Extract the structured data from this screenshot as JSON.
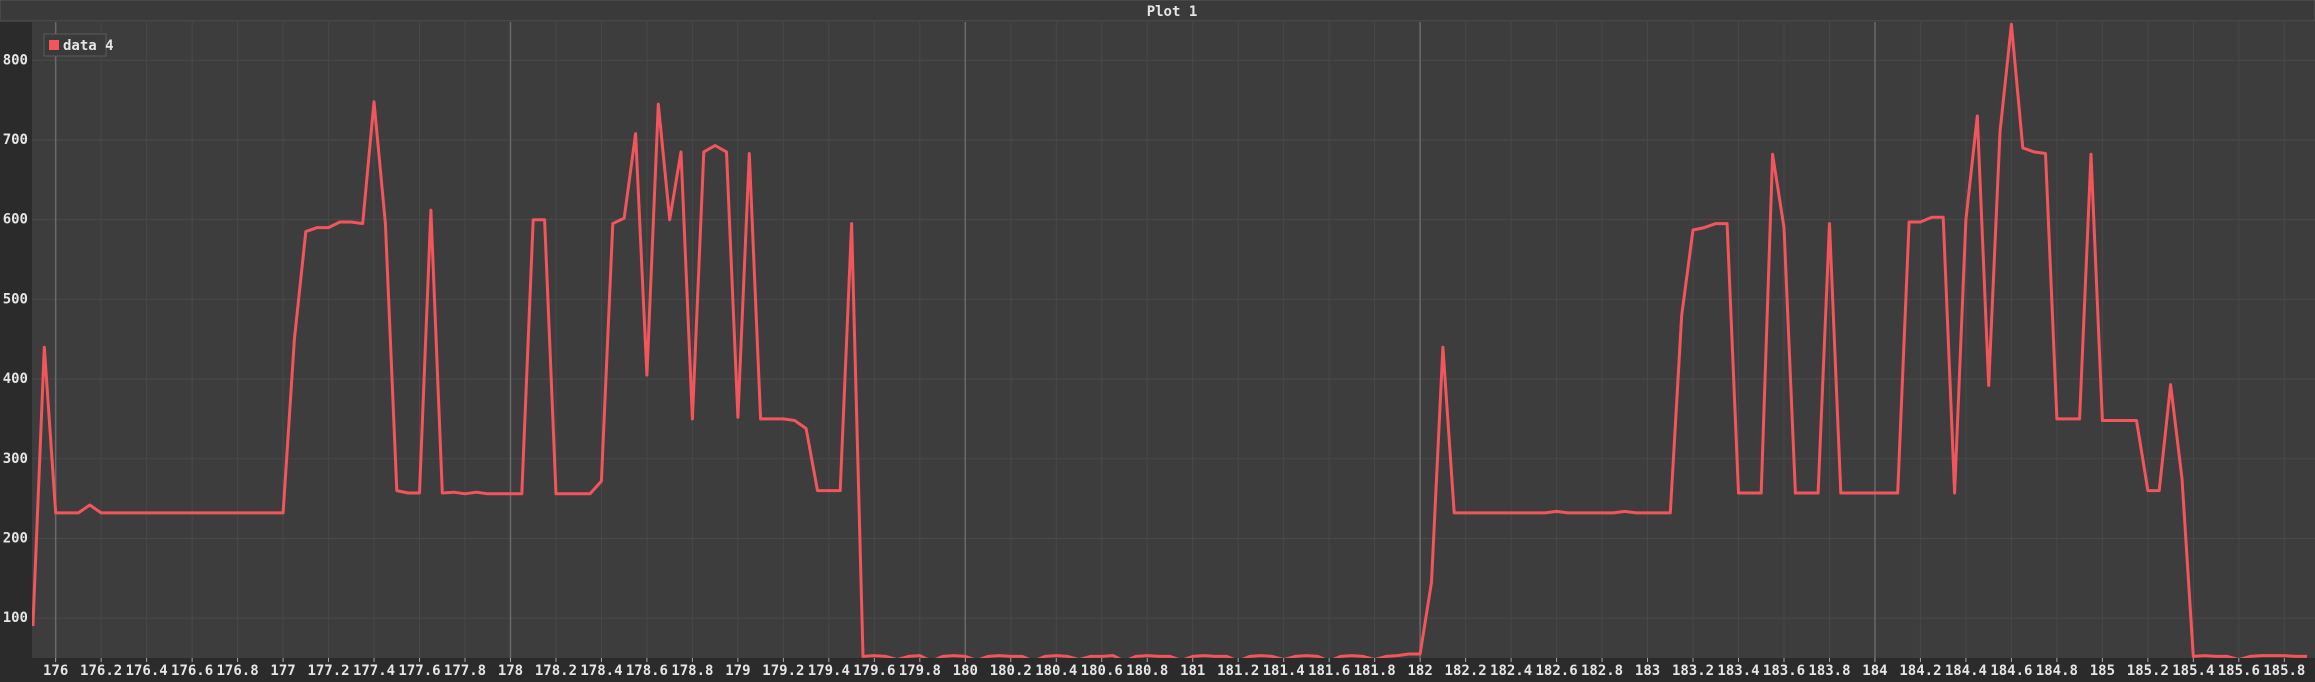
{
  "chart_data": {
    "type": "line",
    "title": "Plot 1",
    "x": [
      175.9,
      175.95,
      176,
      176.05,
      176.1,
      176.15,
      176.2,
      176.25,
      176.3,
      176.35,
      176.4,
      176.45,
      176.5,
      176.55,
      176.6,
      176.65,
      176.7,
      176.75,
      176.8,
      176.85,
      176.9,
      176.95,
      177,
      177.05,
      177.1,
      177.15,
      177.2,
      177.25,
      177.3,
      177.35,
      177.4,
      177.45,
      177.5,
      177.55,
      177.6,
      177.65,
      177.7,
      177.75,
      177.8,
      177.85,
      177.9,
      177.95,
      178,
      178.05,
      178.1,
      178.15,
      178.2,
      178.25,
      178.3,
      178.35,
      178.4,
      178.45,
      178.5,
      178.55,
      178.6,
      178.65,
      178.7,
      178.75,
      178.8,
      178.85,
      178.9,
      178.95,
      179,
      179.05,
      179.1,
      179.15,
      179.2,
      179.25,
      179.3,
      179.35,
      179.4,
      179.45,
      179.5,
      179.55,
      179.6,
      179.65,
      179.7,
      179.75,
      179.8,
      179.85,
      179.9,
      179.95,
      180,
      180.05,
      180.1,
      180.15,
      180.2,
      180.25,
      180.3,
      180.35,
      180.4,
      180.45,
      180.5,
      180.55,
      180.6,
      180.65,
      180.7,
      180.75,
      180.8,
      180.85,
      180.9,
      180.95,
      181,
      181.05,
      181.1,
      181.15,
      181.2,
      181.25,
      181.3,
      181.35,
      181.4,
      181.45,
      181.5,
      181.55,
      181.6,
      181.65,
      181.7,
      181.75,
      181.8,
      181.85,
      181.9,
      181.95,
      182,
      182.05,
      182.1,
      182.15,
      182.2,
      182.25,
      182.3,
      182.35,
      182.4,
      182.45,
      182.5,
      182.55,
      182.6,
      182.65,
      182.7,
      182.75,
      182.8,
      182.85,
      182.9,
      182.95,
      183,
      183.05,
      183.1,
      183.15,
      183.2,
      183.25,
      183.3,
      183.35,
      183.4,
      183.45,
      183.5,
      183.55,
      183.6,
      183.65,
      183.7,
      183.75,
      183.8,
      183.85,
      183.9,
      183.95,
      184,
      184.05,
      184.1,
      184.15,
      184.2,
      184.25,
      184.3,
      184.35,
      184.4,
      184.45,
      184.5,
      184.55,
      184.6,
      184.65,
      184.7,
      184.75,
      184.8,
      184.85,
      184.9,
      184.95,
      185,
      185.05,
      185.1,
      185.15,
      185.2,
      185.25,
      185.3,
      185.35,
      185.4,
      185.45,
      185.5,
      185.55,
      185.6,
      185.65,
      185.7,
      185.75,
      185.8,
      185.85,
      185.9
    ],
    "series": [
      {
        "name": "data 4",
        "color": "#f2555c",
        "values": [
          90,
          440,
          232,
          232,
          232,
          242,
          232,
          232,
          232,
          232,
          232,
          232,
          232,
          232,
          232,
          232,
          232,
          232,
          232,
          232,
          232,
          232,
          232,
          450,
          585,
          590,
          590,
          597,
          597,
          595,
          748,
          595,
          260,
          257,
          257,
          612,
          257,
          258,
          256,
          258,
          256,
          256,
          256,
          256,
          600,
          600,
          256,
          256,
          256,
          256,
          272,
          595,
          602,
          708,
          405,
          745,
          600,
          685,
          350,
          685,
          693,
          685,
          352,
          683,
          350,
          350,
          350,
          348,
          338,
          260,
          260,
          260,
          595,
          52,
          53,
          52,
          48,
          52,
          53,
          46,
          52,
          53,
          52,
          47,
          52,
          53,
          52,
          52,
          46,
          52,
          53,
          52,
          48,
          52,
          52,
          53,
          46,
          52,
          53,
          52,
          52,
          47,
          52,
          53,
          52,
          52,
          46,
          52,
          53,
          52,
          48,
          52,
          53,
          52,
          46,
          52,
          53,
          52,
          48,
          52,
          53,
          55,
          55,
          145,
          440,
          232,
          232,
          232,
          232,
          232,
          232,
          232,
          232,
          232,
          234,
          232,
          232,
          232,
          232,
          232,
          234,
          232,
          232,
          232,
          232,
          480,
          587,
          590,
          595,
          595,
          257,
          257,
          257,
          682,
          590,
          257,
          257,
          257,
          595,
          257,
          257,
          257,
          257,
          257,
          257,
          597,
          597,
          603,
          603,
          257,
          600,
          730,
          392,
          710,
          845,
          690,
          685,
          683,
          350,
          350,
          350,
          682,
          348,
          348,
          348,
          348,
          260,
          260,
          393,
          275,
          52,
          53,
          52,
          52,
          48,
          52,
          53,
          53,
          53,
          52,
          52
        ]
      }
    ],
    "xlim": [
      175.896,
      185.935
    ],
    "ylim": [
      50,
      848
    ],
    "xticks": [
      176,
      176.2,
      176.4,
      176.6,
      176.8,
      177,
      177.2,
      177.4,
      177.6,
      177.8,
      178,
      178.2,
      178.4,
      178.6,
      178.8,
      179,
      179.2,
      179.4,
      179.6,
      179.8,
      180,
      180.2,
      180.4,
      180.6,
      180.8,
      181,
      181.2,
      181.4,
      181.6,
      181.8,
      182,
      182.2,
      182.4,
      182.6,
      182.8,
      183,
      183.2,
      183.4,
      183.6,
      183.8,
      184,
      184.2,
      184.4,
      184.6,
      184.8,
      185,
      185.2,
      185.4,
      185.6,
      185.8
    ],
    "yticks": [
      100,
      200,
      300,
      400,
      500,
      600,
      700,
      800
    ],
    "grid": true,
    "legend": "upper left"
  }
}
